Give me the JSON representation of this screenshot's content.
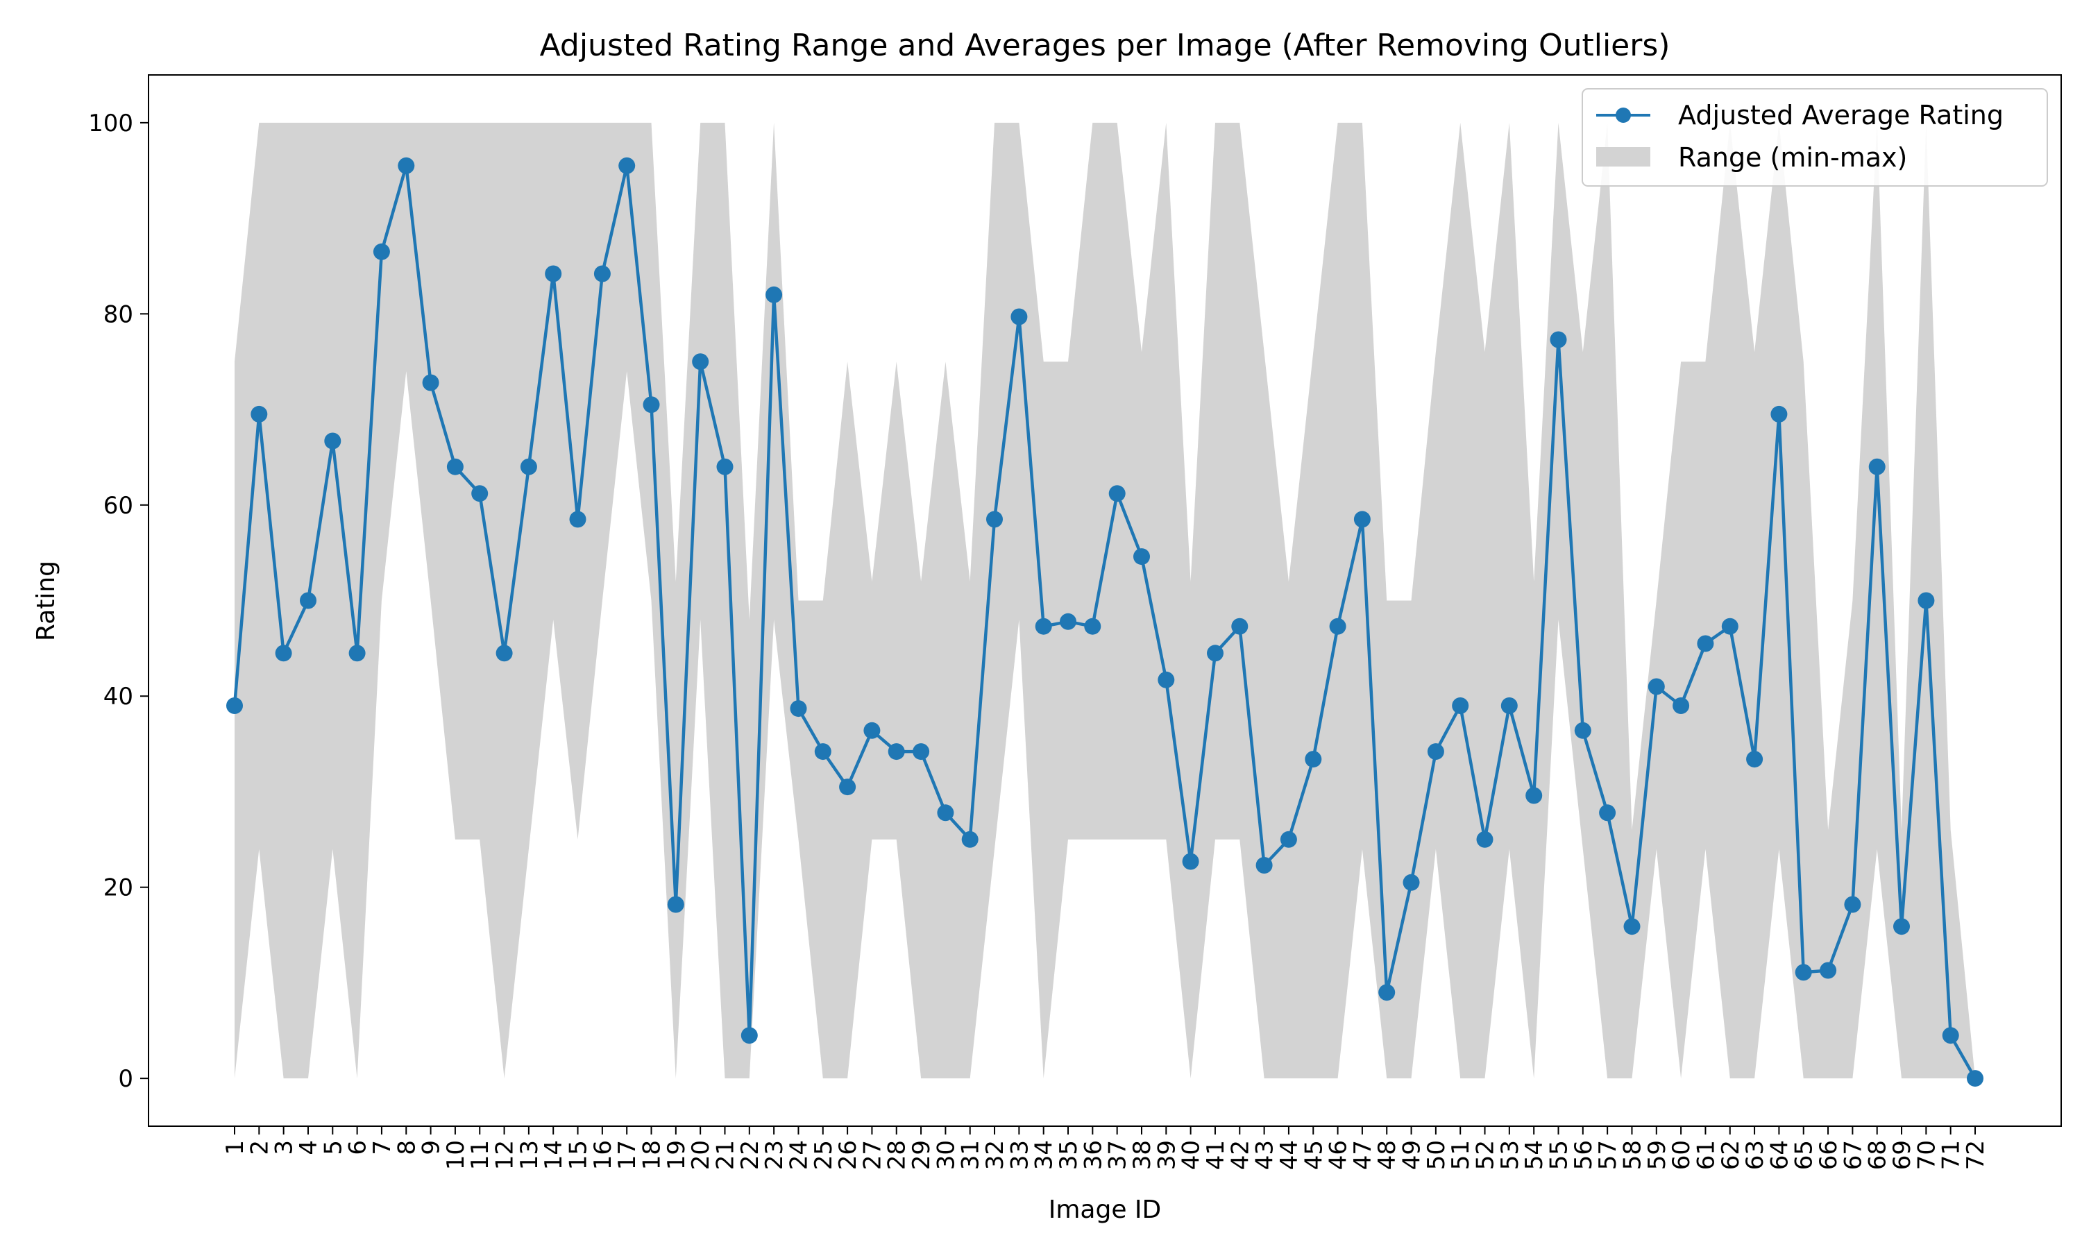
{
  "chart_data": {
    "type": "line",
    "title": "Adjusted Rating Range and Averages per Image (After Removing Outliers)",
    "xlabel": "Image ID",
    "ylabel": "Rating",
    "ylim": [
      -5,
      105
    ],
    "yticks": [
      0,
      20,
      40,
      60,
      80,
      100
    ],
    "grid": false,
    "legend_position": "top-right",
    "x": [
      "1",
      "2",
      "3",
      "4",
      "5",
      "6",
      "7",
      "8",
      "9",
      "10",
      "11",
      "12",
      "13",
      "14",
      "15",
      "16",
      "17",
      "18",
      "19",
      "20",
      "21",
      "22",
      "23",
      "24",
      "25",
      "26",
      "27",
      "28",
      "29",
      "30",
      "31",
      "32",
      "33",
      "34",
      "35",
      "36",
      "37",
      "38",
      "39",
      "40",
      "41",
      "42",
      "43",
      "44",
      "45",
      "46",
      "47",
      "48",
      "49",
      "50",
      "51",
      "52",
      "53",
      "54",
      "55",
      "56",
      "57",
      "58",
      "59",
      "60",
      "61",
      "62",
      "63",
      "64",
      "65",
      "66",
      "67",
      "68",
      "69",
      "70",
      "71",
      "72"
    ],
    "series": [
      {
        "name": "Adjusted Average Rating",
        "kind": "line-marker",
        "color": "#1f77b4",
        "values": [
          39,
          69.5,
          44.5,
          50,
          66.7,
          44.5,
          86.5,
          95.5,
          72.8,
          64,
          61.2,
          44.5,
          64,
          84.2,
          58.5,
          84.2,
          95.5,
          70.5,
          18.2,
          75,
          64,
          4.5,
          82,
          38.7,
          34.2,
          30.5,
          36.4,
          34.2,
          34.2,
          27.8,
          25,
          58.5,
          79.7,
          47.3,
          47.8,
          47.3,
          61.2,
          54.6,
          41.7,
          22.7,
          44.5,
          47.3,
          22.3,
          25,
          33.4,
          47.3,
          58.5,
          9,
          20.5,
          34.2,
          39,
          25,
          39,
          29.6,
          77.3,
          36.4,
          27.8,
          15.9,
          41,
          39,
          45.5,
          47.3,
          33.4,
          69.5,
          11.1,
          11.3,
          18.2,
          64,
          15.9,
          50,
          4.5,
          0
        ]
      },
      {
        "name": "Range (min-max)",
        "kind": "band",
        "color": "#d3d3d3",
        "min": [
          0,
          24,
          0,
          0,
          24,
          0,
          50,
          74,
          50,
          25,
          25,
          0,
          24,
          48,
          25,
          50,
          74,
          50,
          0,
          48,
          0,
          0,
          48,
          25,
          0,
          0,
          25,
          25,
          0,
          0,
          0,
          24,
          48,
          0,
          25,
          25,
          25,
          25,
          25,
          0,
          25,
          25,
          0,
          0,
          0,
          0,
          24,
          0,
          0,
          24,
          0,
          0,
          24,
          0,
          48,
          24,
          0,
          0,
          24,
          0,
          24,
          0,
          0,
          24,
          0,
          0,
          0,
          24,
          0,
          0,
          0,
          0
        ],
        "max": [
          75,
          100,
          100,
          100,
          100,
          100,
          100,
          100,
          100,
          100,
          100,
          100,
          100,
          100,
          100,
          100,
          100,
          100,
          52,
          100,
          100,
          48,
          100,
          50,
          50,
          75,
          52,
          75,
          52,
          75,
          52,
          100,
          100,
          75,
          75,
          100,
          100,
          76,
          100,
          52,
          100,
          100,
          76,
          52,
          76,
          100,
          100,
          50,
          50,
          76,
          100,
          76,
          100,
          52,
          100,
          76,
          100,
          26,
          50,
          75,
          75,
          100,
          76,
          100,
          75,
          26,
          50,
          100,
          26,
          100,
          26,
          0
        ]
      }
    ]
  }
}
